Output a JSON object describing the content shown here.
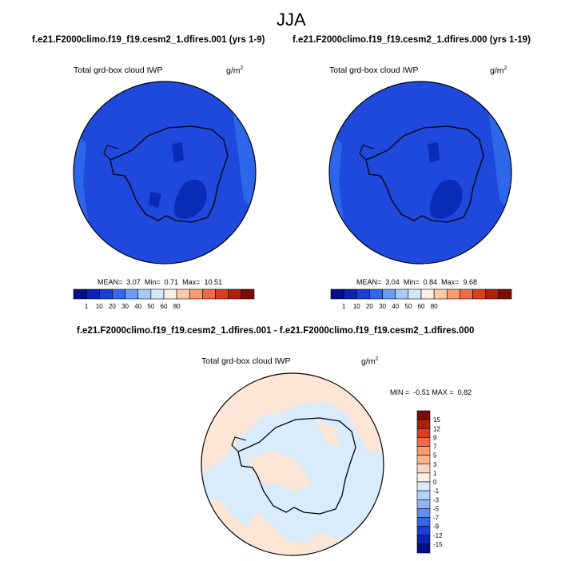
{
  "title": "JJA",
  "case_a": "f.e21.F2000climo.f19_f19.cesm2_1.dfires.001 (yrs 1-9)",
  "case_b": "f.e21.F2000climo.f19_f19.cesm2_1.dfires.000 (yrs 1-19)",
  "diff_title": "f.e21.F2000climo.f19_f19.cesm2_1.dfires.001 - f.e21.F2000climo.f19_f19.cesm2_1.dfires.000",
  "colors": {
    "dark_blue": "#0a2bb8",
    "mid_blue": "#1f49dd",
    "light_blue_region": "#2e66ea",
    "deep_blue": "#071ea3",
    "diff_peach": "#fde6d6",
    "diff_lightblue": "#d8ecfb"
  },
  "chart_data": [
    {
      "type": "heatmap",
      "panel": "top-left",
      "variable": "Total grd-box cloud IWP",
      "units": "g/m",
      "units_superscript": "2",
      "stats": {
        "mean_label": "MEAN=",
        "mean": "3.07",
        "min_label": "Min=",
        "min": "0.71",
        "max_label": "Max=",
        "max": "10.51"
      },
      "colorbar": {
        "levels": [
          "1",
          "10",
          "20",
          "30",
          "40",
          "50",
          "60",
          "80"
        ],
        "colors": [
          "#040e86",
          "#0b22b4",
          "#1c3ed8",
          "#3366ee",
          "#6b9bf7",
          "#a9c8fb",
          "#d6e8fd",
          "#fdeee3",
          "#fcc9aa",
          "#f89b73",
          "#f06b45",
          "#d8401f",
          "#b01f10",
          "#7c0a05"
        ]
      }
    },
    {
      "type": "heatmap",
      "panel": "top-right",
      "variable": "Total grd-box cloud IWP",
      "units": "g/m",
      "units_superscript": "2",
      "stats": {
        "mean_label": "MEAN=",
        "mean": "3.04",
        "min_label": "Min=",
        "min": "0.84",
        "max_label": "Max=",
        "max": "9.68"
      },
      "colorbar": {
        "levels": [
          "1",
          "10",
          "20",
          "30",
          "40",
          "50",
          "60",
          "80"
        ],
        "colors": [
          "#040e86",
          "#0b22b4",
          "#1c3ed8",
          "#3366ee",
          "#6b9bf7",
          "#a9c8fb",
          "#d6e8fd",
          "#fdeee3",
          "#fcc9aa",
          "#f89b73",
          "#f06b45",
          "#d8401f",
          "#b01f10",
          "#7c0a05"
        ]
      }
    },
    {
      "type": "heatmap",
      "panel": "bottom",
      "variable": "Total grd-box cloud IWP",
      "units": "g/m",
      "units_superscript": "2",
      "stats": {
        "min_label": "MIN =",
        "min": "-0.51",
        "max_label": "MAX =",
        "max": "0.82"
      },
      "colorbar": {
        "levels": [
          "15",
          "12",
          "9",
          "7",
          "5",
          "3",
          "1",
          "0",
          "-1",
          "-3",
          "-5",
          "-7",
          "-9",
          "-12",
          "-15"
        ],
        "colors": [
          "#7c0a05",
          "#b01f10",
          "#d8401f",
          "#f06b45",
          "#f89b73",
          "#fcb48f",
          "#fdd6bd",
          "#fdeee3",
          "#d8ecfb",
          "#b5d2f8",
          "#8fb4f4",
          "#5f8fee",
          "#3366e6",
          "#1c3ed8",
          "#0b22b4",
          "#040e86"
        ]
      }
    }
  ]
}
